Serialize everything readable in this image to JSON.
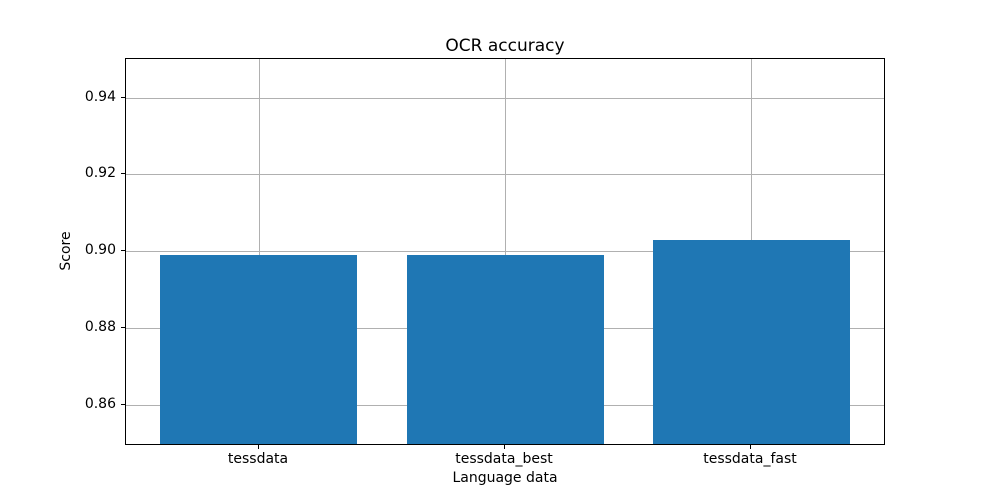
{
  "chart_data": {
    "type": "bar",
    "title": "OCR accuracy",
    "xlabel": "Language data",
    "ylabel": "Score",
    "categories": [
      "tessdata",
      "tessdata_best",
      "tessdata_fast"
    ],
    "values": [
      0.899,
      0.899,
      0.903
    ],
    "ylim": [
      0.85,
      0.95
    ],
    "yticks": [
      0.86,
      0.88,
      0.9,
      0.92,
      0.94
    ],
    "bar_color": "#1f77b4",
    "grid": true,
    "grid_color": "#b0b0b0",
    "axis_color": "#000000",
    "background": "#ffffff",
    "legend": "none"
  }
}
